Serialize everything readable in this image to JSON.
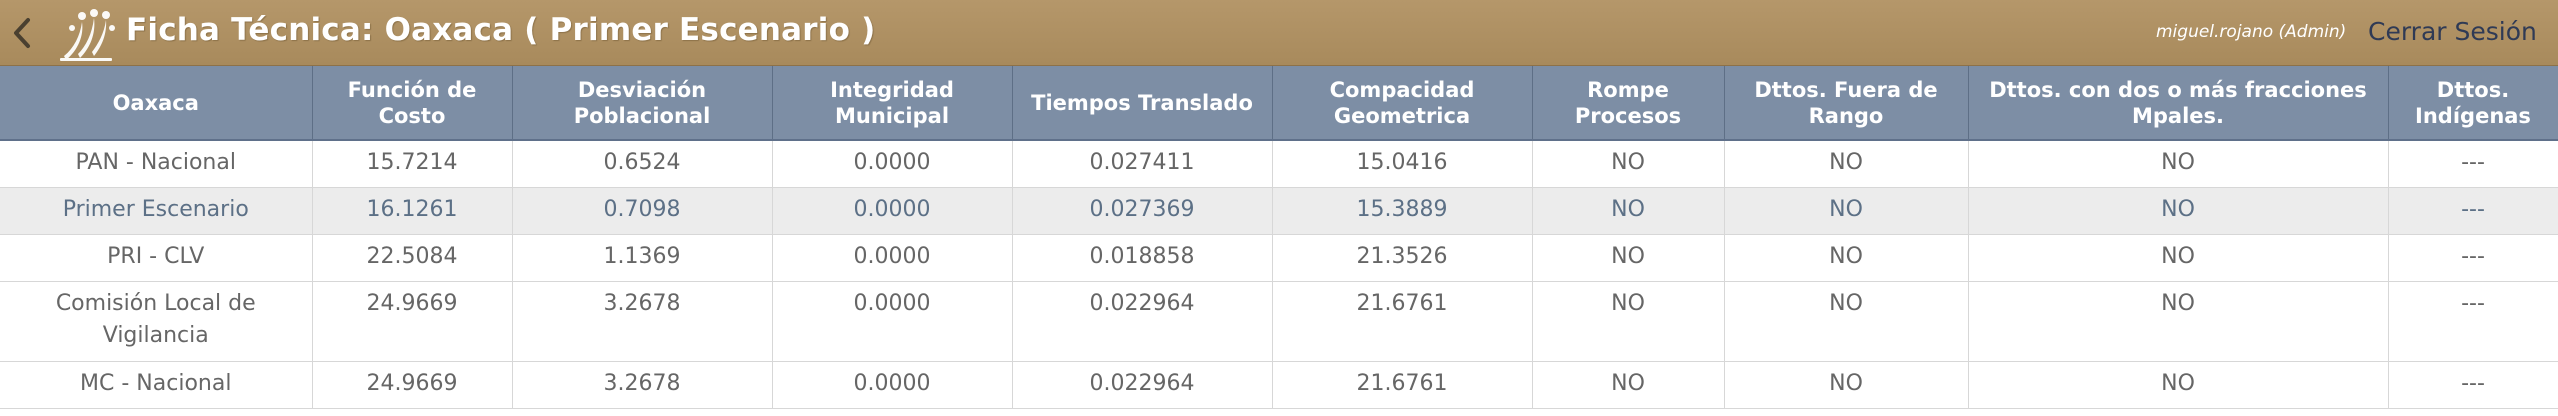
{
  "header": {
    "title": "Ficha Técnica: Oaxaca ( Primer Escenario )",
    "user": "miguel.rojano (Admin)",
    "logout": "Cerrar Sesión"
  },
  "colors": {
    "topbar": "#b08f62",
    "table_header": "#7d8ea5",
    "alt_row": "#ececec",
    "logout_text": "#2f3a55"
  },
  "icons": {
    "back": "chevron-left-icon",
    "logo": "ornamental-logo"
  },
  "table": {
    "columns": [
      "Oaxaca",
      "Función de Costo",
      "Desviación Poblacional",
      "Integridad Municipal",
      "Tiempos Translado",
      "Compacidad Geometrica",
      "Rompe Procesos",
      "Dttos. Fuera de Rango",
      "Dttos. con dos o más fracciones Mpales.",
      "Dttos. Indígenas"
    ],
    "rows": [
      [
        "PAN - Nacional",
        "15.7214",
        "0.6524",
        "0.0000",
        "0.027411",
        "15.0416",
        "NO",
        "NO",
        "NO",
        "---"
      ],
      [
        "Primer Escenario",
        "16.1261",
        "0.7098",
        "0.0000",
        "0.027369",
        "15.3889",
        "NO",
        "NO",
        "NO",
        "---"
      ],
      [
        "PRI - CLV",
        "22.5084",
        "1.1369",
        "0.0000",
        "0.018858",
        "21.3526",
        "NO",
        "NO",
        "NO",
        "---"
      ],
      [
        "Comisión Local de Vigilancia",
        "24.9669",
        "3.2678",
        "0.0000",
        "0.022964",
        "21.6761",
        "NO",
        "NO",
        "NO",
        "---"
      ],
      [
        "MC - Nacional",
        "24.9669",
        "3.2678",
        "0.0000",
        "0.022964",
        "21.6761",
        "NO",
        "NO",
        "NO",
        "---"
      ]
    ]
  }
}
